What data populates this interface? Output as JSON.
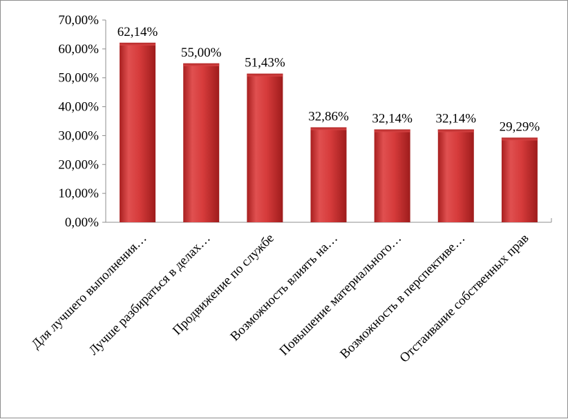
{
  "chart_data": {
    "type": "bar",
    "categories": [
      "Для лучшего выполнения…",
      "Лучше разбираться в делах…",
      "Продвижение по службе",
      "Возможность влиять на…",
      "Повышение материального…",
      "Возможность в перспективе…",
      "Отстаивание собственных прав"
    ],
    "values": [
      62.14,
      55.0,
      51.43,
      32.86,
      32.14,
      32.14,
      29.29
    ],
    "data_labels": [
      "62,14%",
      "55,00%",
      "51,43%",
      "32,86%",
      "32,14%",
      "32,14%",
      "29,29%"
    ],
    "y_ticks": [
      "0,00%",
      "10,00%",
      "20,00%",
      "30,00%",
      "40,00%",
      "50,00%",
      "60,00%",
      "70,00%"
    ],
    "ylim": [
      0,
      70
    ],
    "grid": false,
    "legend": "none",
    "colors": {
      "bar": "#d63b3b",
      "bar_dark": "#9e1c1c",
      "bar_light": "#e86060",
      "axis": "#8c8c8c"
    }
  }
}
